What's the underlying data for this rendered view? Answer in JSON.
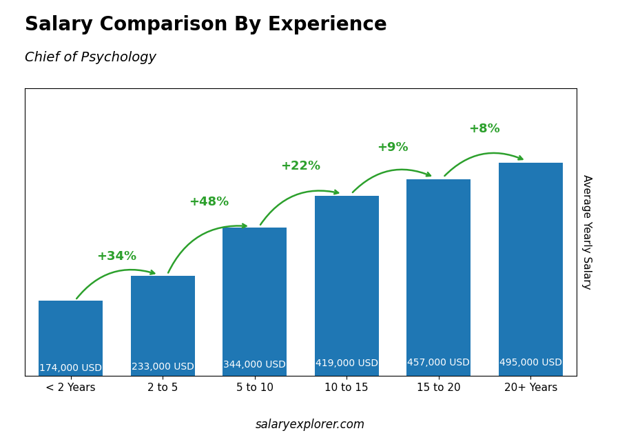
{
  "chart_data": {
    "type": "bar",
    "title": "Salary Comparison By Experience",
    "subtitle": "Chief of Psychology",
    "ylabel": "Average Yearly Salary",
    "watermark": "salaryexplorer.com",
    "categories": [
      "< 2 Years",
      "2 to 5",
      "5 to 10",
      "10 to 15",
      "15 to 20",
      "20+ Years"
    ],
    "values": [
      174000,
      233000,
      344000,
      419000,
      457000,
      495000
    ],
    "value_labels": [
      "174,000 USD",
      "233,000 USD",
      "344,000 USD",
      "419,000 USD",
      "457,000 USD",
      "495,000 USD"
    ],
    "data_labels": true,
    "annotations": [
      "+34%",
      "+48%",
      "+22%",
      "+9%",
      "+8%"
    ],
    "ylim": [
      0,
      668250
    ],
    "yticks": [],
    "tick_labels": "x"
  }
}
